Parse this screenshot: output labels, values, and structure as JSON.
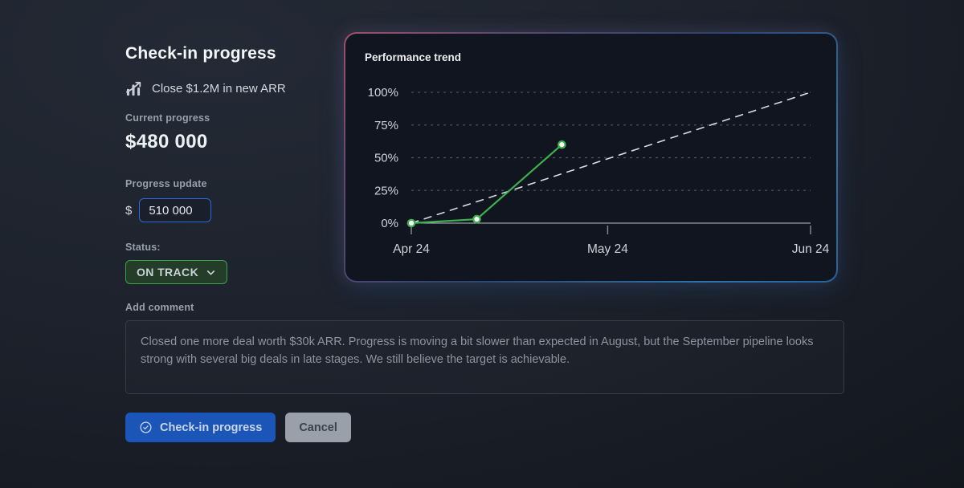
{
  "page": {
    "title": "Check-in progress"
  },
  "goal": {
    "label": "Close $1.2M in new ARR",
    "icon": "trend-chart-icon"
  },
  "current_progress": {
    "label": "Current progress",
    "value": "$480 000"
  },
  "progress_update": {
    "label": "Progress update",
    "currency_prefix": "$",
    "input_value": "510 000"
  },
  "status": {
    "label": "Status:",
    "value": "ON TRACK"
  },
  "comment": {
    "label": "Add comment",
    "value": "Closed one more deal worth $30k ARR. Progress is moving a bit slower than expected in August, but the September pipeline looks strong with several big deals in late stages. We still believe the target is achievable."
  },
  "actions": {
    "submit_label": "Check-in progress",
    "cancel_label": "Cancel"
  },
  "colors": {
    "accent_green": "#3db14d",
    "expected_line": "#d9dde3",
    "status_border": "#3fa04e",
    "primary_button": "#1b55b7",
    "input_focus_border": "#2c68dd",
    "cancel_button": "#9aa0a9",
    "grid_line": "#4c525d",
    "axis_line": "#b9bec7",
    "axis_text": "#ced3da"
  },
  "chart_data": {
    "type": "line",
    "title": "Performance trend",
    "xlabel": "",
    "ylabel": "",
    "x_axis": {
      "range": [
        0,
        61
      ],
      "ticks": [
        {
          "pos": 0,
          "label": "Apr 24"
        },
        {
          "pos": 30,
          "label": "May 24"
        },
        {
          "pos": 61,
          "label": "Jun 24"
        }
      ]
    },
    "y_axis": {
      "range": [
        0,
        100
      ],
      "ticks": [
        {
          "value": 0,
          "label": "0%"
        },
        {
          "value": 25,
          "label": "25%"
        },
        {
          "value": 50,
          "label": "50%"
        },
        {
          "value": 75,
          "label": "75%"
        },
        {
          "value": 100,
          "label": "100%"
        }
      ]
    },
    "grid": "horizontal-dashed",
    "legend": "none",
    "series": [
      {
        "name": "actual-progress",
        "style": "solid",
        "color": "#3db14d",
        "markers": true,
        "points": [
          [
            0,
            0
          ],
          [
            10,
            3
          ],
          [
            23,
            60
          ]
        ]
      },
      {
        "name": "expected-trend",
        "style": "dashed",
        "color": "#d9dde3",
        "markers": false,
        "points": [
          [
            0,
            0
          ],
          [
            61,
            100
          ]
        ]
      }
    ]
  }
}
